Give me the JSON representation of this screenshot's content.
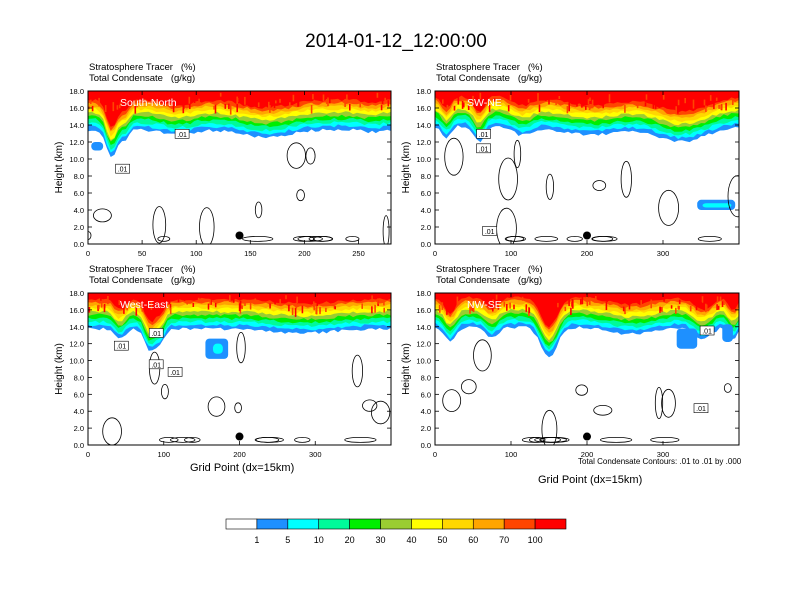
{
  "title": "2014-01-12_12:00:00",
  "palette": [
    "#ffffff",
    "#1e90ff",
    "#00ffff",
    "#00fa9a",
    "#00ee00",
    "#9acd32",
    "#ffff00",
    "#ffd700",
    "#ffa500",
    "#ff4500",
    "#ff0000"
  ],
  "colorbar_labels": [
    "1",
    "5",
    "10",
    "20",
    "30",
    "40",
    "50",
    "60",
    "70",
    "100"
  ],
  "chart_data": [
    {
      "type": "heatmap",
      "panel": "South-North",
      "field_labels": [
        "Stratosphere Tracer   (%)",
        "Total Condensate   (g/kg)"
      ],
      "ylabel": "Height (km)",
      "xlabel": "",
      "xlim": [
        0,
        280
      ],
      "ylim": [
        0,
        18
      ],
      "x_ticks": [
        "0",
        "50",
        "100",
        "150",
        "200",
        "250"
      ],
      "x_tick_values": [
        0,
        50,
        100,
        150,
        200,
        250
      ],
      "y_ticks": [
        "0.0",
        "2.0",
        "4.0",
        "6.0",
        "8.0",
        "10.0",
        "12.0",
        "14.0",
        "16.0",
        "18.0"
      ],
      "contour_labels": [
        {
          "text": ".01",
          "x": 87,
          "y": 12.9
        },
        {
          "text": ".01",
          "x": 32,
          "y": 8.8
        }
      ],
      "point": {
        "x": 140,
        "y": 1.0
      }
    },
    {
      "type": "heatmap",
      "panel": "SW-NE",
      "field_labels": [
        "Stratosphere Tracer   (%)",
        "Total Condensate   (g/kg)"
      ],
      "ylabel": "Height (km)",
      "xlabel": "",
      "xlim": [
        0,
        400
      ],
      "ylim": [
        0,
        18
      ],
      "x_ticks": [
        "0",
        "100",
        "200",
        "300"
      ],
      "x_tick_values": [
        0,
        100,
        200,
        300
      ],
      "y_ticks": [
        "0.0",
        "2.0",
        "4.0",
        "6.0",
        "8.0",
        "10.0",
        "12.0",
        "14.0",
        "16.0",
        "18.0"
      ],
      "contour_labels": [
        {
          "text": ".01",
          "x": 64,
          "y": 12.9
        },
        {
          "text": ".01",
          "x": 64,
          "y": 11.2
        },
        {
          "text": ".01",
          "x": 72,
          "y": 1.5
        }
      ],
      "point": {
        "x": 200,
        "y": 1.0
      }
    },
    {
      "type": "heatmap",
      "panel": "West-East",
      "field_labels": [
        "Stratosphere Tracer   (%)",
        "Total Condensate   (g/kg)"
      ],
      "ylabel": "Height (km)",
      "xlabel": "Grid Point (dx=15km)",
      "xlim": [
        0,
        400
      ],
      "ylim": [
        0,
        18
      ],
      "x_ticks": [
        "0",
        "100",
        "200",
        "300"
      ],
      "x_tick_values": [
        0,
        100,
        200,
        300
      ],
      "y_ticks": [
        "0.0",
        "2.0",
        "4.0",
        "6.0",
        "8.0",
        "10.0",
        "12.0",
        "14.0",
        "16.0",
        "18.0"
      ],
      "contour_labels": [
        {
          "text": ".01",
          "x": 44,
          "y": 11.7
        },
        {
          "text": ".01",
          "x": 90,
          "y": 9.5
        },
        {
          "text": ".01",
          "x": 115,
          "y": 8.6
        },
        {
          "text": ".01",
          "x": 90,
          "y": 13.2
        }
      ],
      "point": {
        "x": 200,
        "y": 1.0
      }
    },
    {
      "type": "heatmap",
      "panel": "NW-SE",
      "field_labels": [
        "Stratosphere Tracer   (%)",
        "Total Condensate   (g/kg)"
      ],
      "ylabel": "Height (km)",
      "xlabel": "Grid Point (dx=15km)",
      "xlim": [
        0,
        400
      ],
      "ylim": [
        0,
        18
      ],
      "x_ticks": [
        "0",
        "100",
        "200",
        "300"
      ],
      "x_tick_values": [
        0,
        100,
        200,
        300
      ],
      "y_ticks": [
        "0.0",
        "2.0",
        "4.0",
        "6.0",
        "8.0",
        "10.0",
        "12.0",
        "14.0",
        "16.0",
        "18.0"
      ],
      "contour_labels": [
        {
          "text": ".01",
          "x": 358,
          "y": 13.5
        },
        {
          "text": ".01",
          "x": 350,
          "y": 4.3
        }
      ],
      "point": {
        "x": 200,
        "y": 1.0
      },
      "footnote": "Total Condensate Contours: .01 to .01 by .000"
    }
  ]
}
